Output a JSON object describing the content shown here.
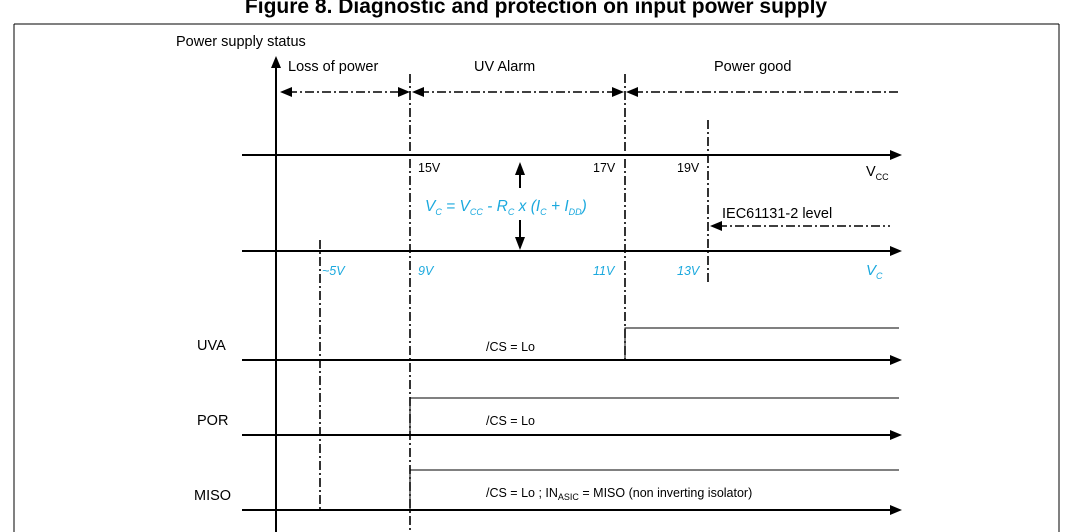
{
  "figure": {
    "title": "Figure 8. Diagnostic and protection on input power supply",
    "y_axis_label": "Power supply status"
  },
  "regions": [
    {
      "label": "Loss of power"
    },
    {
      "label": "UV Alarm"
    },
    {
      "label": "Power good"
    }
  ],
  "vcc_axis": {
    "name": "V",
    "name_sub": "CC",
    "thresholds": [
      "15V",
      "17V",
      "19V"
    ]
  },
  "formula": {
    "parts": [
      "V",
      "C",
      " = V",
      "CC",
      " - R",
      "C",
      " x (I",
      "C",
      " + I",
      "DD",
      ")"
    ]
  },
  "iec_label": "IEC61131-2 level",
  "vc_axis": {
    "name": "V",
    "name_sub": "C",
    "thresholds": [
      "~5V",
      "9V",
      "11V",
      "13V"
    ]
  },
  "signals": [
    {
      "name": "UVA",
      "condition": "/CS = Lo"
    },
    {
      "name": "POR",
      "condition": "/CS = Lo"
    },
    {
      "name": "MISO",
      "condition_prefix": "/CS = Lo  ; IN",
      "condition_sub": "ASIC",
      "condition_suffix": " = MISO (non inverting isolator)"
    }
  ],
  "colors": {
    "accent": "#1ba9de",
    "line": "#000000",
    "background": "#ffffff"
  }
}
